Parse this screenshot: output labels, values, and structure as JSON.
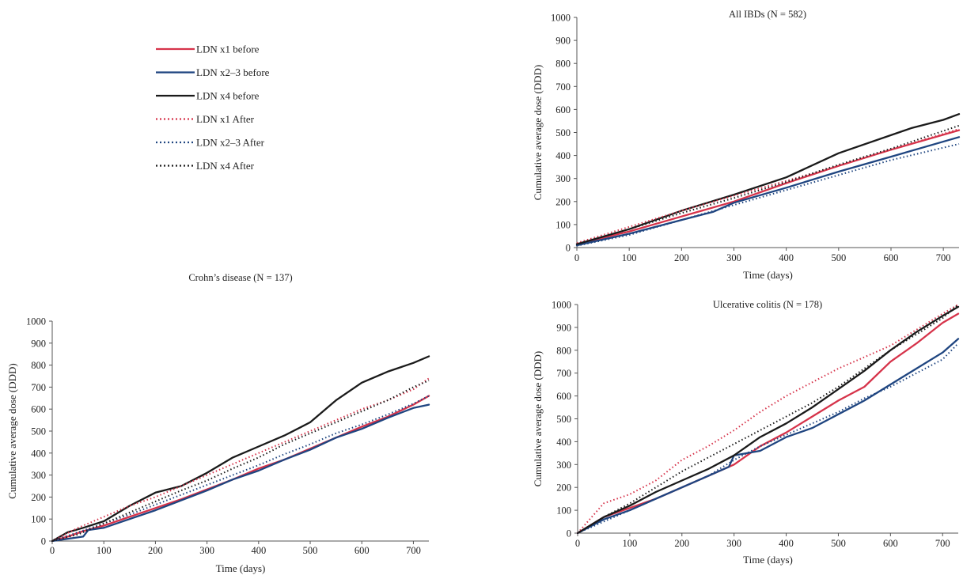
{
  "legend": [
    {
      "label": "LDN x1 before",
      "color": "#d6334a",
      "style": "solid"
    },
    {
      "label": "LDN x2–3 before",
      "color": "#1f4580",
      "style": "solid"
    },
    {
      "label": "LDN x4 before",
      "color": "#1a1a1a",
      "style": "solid"
    },
    {
      "label": "LDN x1 After",
      "color": "#d6334a",
      "style": "dotted"
    },
    {
      "label": "LDN x2–3 After",
      "color": "#1f4580",
      "style": "dotted"
    },
    {
      "label": "LDN x4 After",
      "color": "#1a1a1a",
      "style": "dotted"
    }
  ],
  "chart_data": [
    {
      "type": "line",
      "title": "All IBDs (N = 582)",
      "xlabel": "Time (days)",
      "ylabel": "Cumulative average dose (DDD)",
      "xlim": [
        0,
        730
      ],
      "ylim": [
        0,
        1000
      ],
      "xticks": [
        0,
        100,
        200,
        300,
        400,
        500,
        600,
        700
      ],
      "yticks": [
        0,
        100,
        200,
        300,
        400,
        500,
        600,
        700,
        800,
        900,
        1000
      ],
      "grid": false,
      "series": [
        {
          "name": "LDN x1 before",
          "x": [
            0,
            100,
            200,
            300,
            400,
            500,
            600,
            730
          ],
          "y": [
            15,
            70,
            135,
            200,
            280,
            355,
            425,
            510
          ]
        },
        {
          "name": "LDN x2–3 before",
          "x": [
            0,
            100,
            200,
            260,
            300,
            400,
            500,
            600,
            730
          ],
          "y": [
            10,
            60,
            120,
            155,
            195,
            260,
            330,
            395,
            480
          ]
        },
        {
          "name": "LDN x4 before",
          "x": [
            0,
            100,
            200,
            300,
            400,
            500,
            640,
            700,
            730
          ],
          "y": [
            15,
            80,
            160,
            230,
            305,
            410,
            520,
            555,
            580
          ]
        },
        {
          "name": "LDN x1 After",
          "x": [
            0,
            100,
            200,
            300,
            400,
            500,
            600,
            730
          ],
          "y": [
            20,
            90,
            160,
            225,
            290,
            355,
            425,
            515
          ]
        },
        {
          "name": "LDN x2–3 After",
          "x": [
            0,
            100,
            200,
            300,
            400,
            500,
            600,
            730
          ],
          "y": [
            8,
            55,
            120,
            185,
            250,
            315,
            380,
            450
          ]
        },
        {
          "name": "LDN x4 After",
          "x": [
            0,
            100,
            200,
            300,
            400,
            500,
            600,
            730
          ],
          "y": [
            15,
            80,
            150,
            215,
            285,
            360,
            430,
            530
          ]
        }
      ]
    },
    {
      "type": "line",
      "title": "Crohn’s disease (N = 137)",
      "xlabel": "Time (days)",
      "ylabel": "Cumulative average dose (DDD)",
      "xlim": [
        0,
        730
      ],
      "ylim": [
        0,
        1000
      ],
      "xticks": [
        0,
        100,
        200,
        300,
        400,
        500,
        600,
        700
      ],
      "yticks": [
        0,
        100,
        200,
        300,
        400,
        500,
        600,
        700,
        800,
        900,
        1000
      ],
      "grid": false,
      "series": [
        {
          "name": "LDN x1 before",
          "x": [
            0,
            30,
            60,
            100,
            150,
            200,
            250,
            300,
            350,
            400,
            450,
            500,
            550,
            600,
            650,
            700,
            730
          ],
          "y": [
            0,
            20,
            45,
            70,
            110,
            150,
            190,
            235,
            280,
            330,
            370,
            420,
            470,
            520,
            565,
            620,
            660
          ]
        },
        {
          "name": "LDN x2–3 before",
          "x": [
            0,
            60,
            70,
            100,
            150,
            200,
            250,
            300,
            350,
            400,
            450,
            500,
            550,
            600,
            650,
            700,
            730
          ],
          "y": [
            0,
            20,
            50,
            60,
            100,
            140,
            185,
            230,
            280,
            320,
            370,
            415,
            470,
            510,
            560,
            605,
            620
          ]
        },
        {
          "name": "LDN x4 before",
          "x": [
            0,
            30,
            60,
            100,
            150,
            200,
            250,
            300,
            350,
            400,
            450,
            500,
            550,
            600,
            650,
            700,
            730
          ],
          "y": [
            0,
            40,
            60,
            90,
            160,
            220,
            250,
            310,
            380,
            430,
            480,
            540,
            640,
            720,
            770,
            810,
            840
          ]
        },
        {
          "name": "LDN x1 After",
          "x": [
            0,
            50,
            100,
            150,
            200,
            250,
            300,
            350,
            400,
            450,
            500,
            550,
            600,
            650,
            700,
            730
          ],
          "y": [
            0,
            60,
            110,
            160,
            200,
            250,
            300,
            350,
            400,
            450,
            500,
            550,
            600,
            640,
            690,
            740
          ]
        },
        {
          "name": "LDN x2–3 After",
          "x": [
            0,
            50,
            100,
            150,
            200,
            250,
            300,
            350,
            400,
            450,
            500,
            550,
            600,
            650,
            700,
            730
          ],
          "y": [
            0,
            40,
            80,
            120,
            165,
            210,
            255,
            300,
            345,
            395,
            440,
            490,
            530,
            575,
            625,
            660
          ]
        },
        {
          "name": "LDN x4 After",
          "x": [
            0,
            50,
            100,
            150,
            200,
            250,
            300,
            350,
            400,
            450,
            500,
            550,
            600,
            650,
            700,
            730
          ],
          "y": [
            0,
            30,
            80,
            130,
            180,
            230,
            275,
            330,
            380,
            440,
            490,
            540,
            590,
            640,
            700,
            730
          ]
        }
      ]
    },
    {
      "type": "line",
      "title": "Ulcerative colitis (N = 178)",
      "xlabel": "Time (days)",
      "ylabel": "Cumulative average dose (DDD)",
      "xlim": [
        0,
        730
      ],
      "ylim": [
        0,
        1000
      ],
      "xticks": [
        0,
        100,
        200,
        300,
        400,
        500,
        600,
        700
      ],
      "yticks": [
        0,
        100,
        200,
        300,
        400,
        500,
        600,
        700,
        800,
        900,
        1000
      ],
      "grid": false,
      "series": [
        {
          "name": "LDN x1 before",
          "x": [
            0,
            50,
            100,
            150,
            200,
            250,
            300,
            350,
            400,
            450,
            500,
            550,
            600,
            650,
            700,
            730
          ],
          "y": [
            0,
            70,
            110,
            150,
            200,
            250,
            300,
            380,
            440,
            510,
            580,
            640,
            750,
            830,
            920,
            960
          ]
        },
        {
          "name": "LDN x2–3 before",
          "x": [
            0,
            50,
            100,
            150,
            200,
            250,
            290,
            300,
            350,
            400,
            450,
            500,
            550,
            600,
            650,
            700,
            730
          ],
          "y": [
            0,
            60,
            100,
            150,
            200,
            250,
            290,
            340,
            360,
            420,
            460,
            520,
            580,
            650,
            720,
            790,
            850
          ]
        },
        {
          "name": "LDN x4 before",
          "x": [
            0,
            50,
            100,
            150,
            200,
            250,
            300,
            350,
            400,
            450,
            500,
            550,
            600,
            650,
            700,
            730
          ],
          "y": [
            0,
            70,
            120,
            180,
            230,
            280,
            340,
            420,
            480,
            550,
            630,
            710,
            800,
            880,
            950,
            990
          ]
        },
        {
          "name": "LDN x1 After",
          "x": [
            0,
            50,
            100,
            150,
            200,
            250,
            300,
            350,
            400,
            450,
            500,
            550,
            600,
            650,
            700,
            730
          ],
          "y": [
            0,
            130,
            170,
            230,
            320,
            380,
            450,
            530,
            600,
            660,
            720,
            770,
            820,
            890,
            960,
            1000
          ]
        },
        {
          "name": "LDN x2–3 After",
          "x": [
            0,
            50,
            100,
            150,
            200,
            250,
            300,
            350,
            400,
            450,
            500,
            550,
            600,
            650,
            700,
            730
          ],
          "y": [
            0,
            50,
            100,
            150,
            200,
            250,
            320,
            380,
            430,
            480,
            530,
            590,
            640,
            700,
            760,
            830
          ]
        },
        {
          "name": "LDN x4 After",
          "x": [
            0,
            50,
            100,
            150,
            200,
            250,
            300,
            350,
            400,
            450,
            500,
            550,
            600,
            650,
            700,
            730
          ],
          "y": [
            0,
            70,
            130,
            200,
            270,
            330,
            390,
            450,
            510,
            570,
            640,
            720,
            800,
            870,
            940,
            1000
          ]
        }
      ]
    }
  ]
}
